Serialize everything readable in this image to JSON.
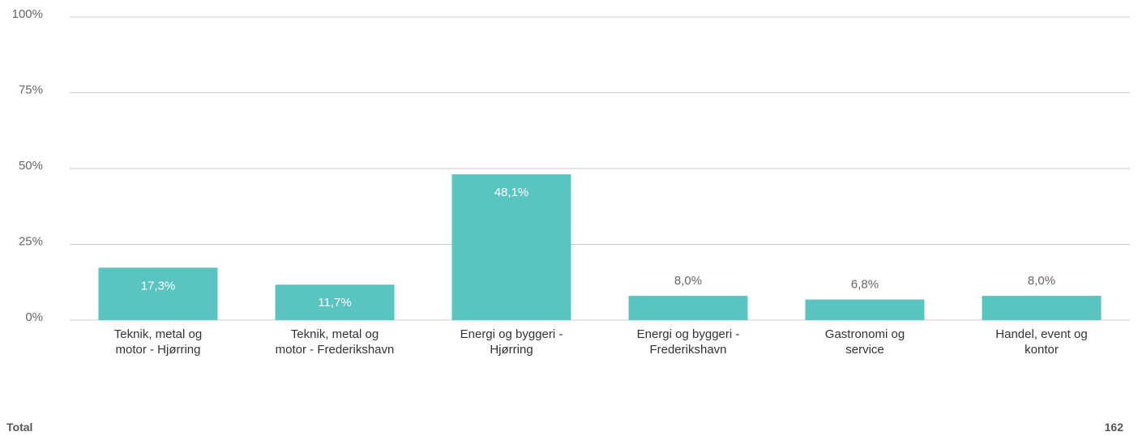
{
  "chart_data": {
    "type": "bar",
    "categories": [
      "Teknik, metal og motor - Hjørring",
      "Teknik, metal og motor - Frederikshavn",
      "Energi og byggeri - Hjørring",
      "Energi og byggeri - Frederikshavn",
      "Gastronomi og service",
      "Handel, event og kontor"
    ],
    "values": [
      17.3,
      11.7,
      48.1,
      8.0,
      6.8,
      8.0
    ],
    "value_labels": [
      "17,3%",
      "11,7%",
      "48,1%",
      "8,0%",
      "6,8%",
      "8,0%"
    ],
    "color": "#5ac5c0",
    "ylim": [
      0,
      100
    ],
    "yticks": [
      {
        "value": 0,
        "label": "0%"
      },
      {
        "value": 25,
        "label": "25%"
      },
      {
        "value": 50,
        "label": "50%"
      },
      {
        "value": 75,
        "label": "75%"
      },
      {
        "value": 100,
        "label": "100%"
      }
    ],
    "grid": true,
    "total_label": "Total",
    "total": 162
  }
}
